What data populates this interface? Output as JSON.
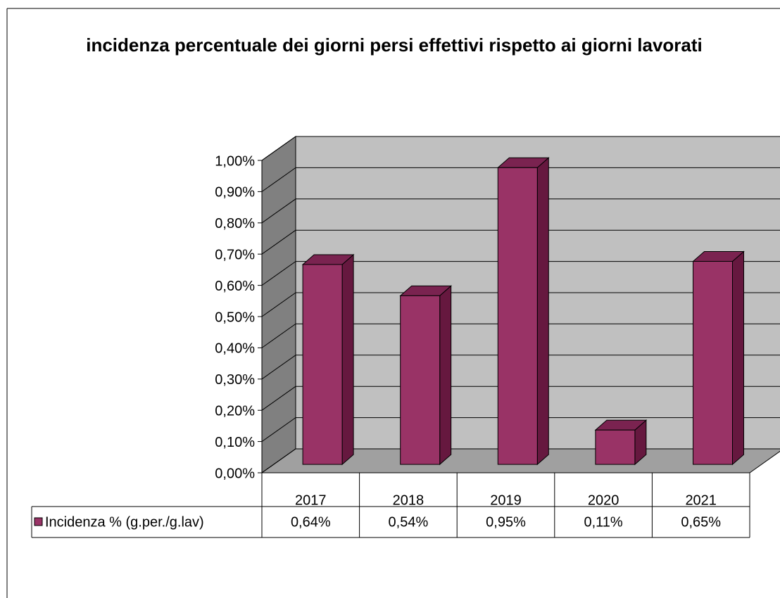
{
  "chart_data": {
    "type": "bar3d",
    "title": "incidenza percentuale dei giorni persi effettivi rispetto ai giorni lavorati",
    "categories": [
      "2017",
      "2018",
      "2019",
      "2020",
      "2021"
    ],
    "series": [
      {
        "name": "Incidenza % (g.per./g.lav)",
        "color": "#993366",
        "values": [
          0.64,
          0.54,
          0.95,
          0.11,
          0.65
        ],
        "value_labels": [
          "0,64%",
          "0,54%",
          "0,95%",
          "0,11%",
          "0,65%"
        ]
      }
    ],
    "ylim": [
      0,
      1
    ],
    "yticks": [
      {
        "value": 0,
        "label": "0,00%"
      },
      {
        "value": 0.1,
        "label": "0,10%"
      },
      {
        "value": 0.2,
        "label": "0,20%"
      },
      {
        "value": 0.3,
        "label": "0,30%"
      },
      {
        "value": 0.4,
        "label": "0,40%"
      },
      {
        "value": 0.5,
        "label": "0,50%"
      },
      {
        "value": 0.6,
        "label": "0,60%"
      },
      {
        "value": 0.7,
        "label": "0,70%"
      },
      {
        "value": 0.8,
        "label": "0,80%"
      },
      {
        "value": 0.9,
        "label": "0,90%"
      },
      {
        "value": 1,
        "label": "1,00%"
      }
    ],
    "grid": true,
    "legend": "data-table"
  }
}
